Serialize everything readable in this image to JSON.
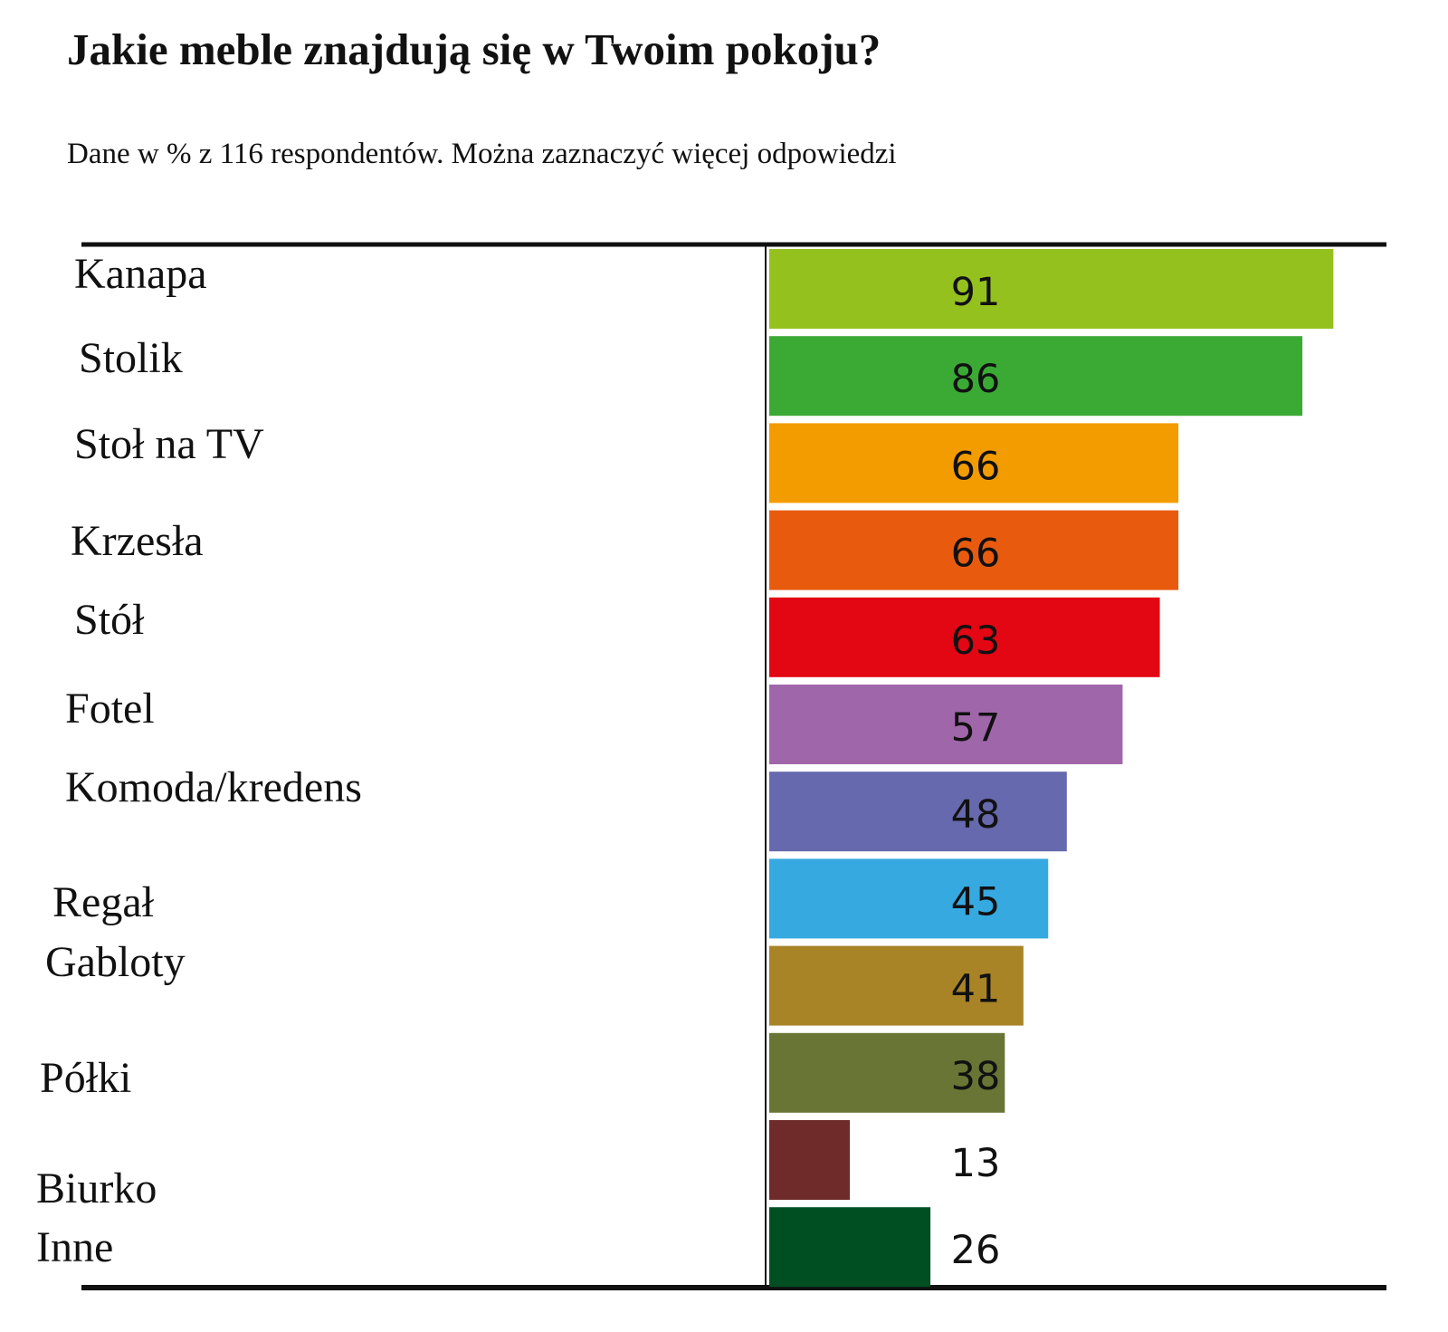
{
  "chart_data": {
    "type": "bar",
    "orientation": "horizontal",
    "title": "Jakie meble znajdują się w Twoim pokoju?",
    "subtitle": "Dane w % z 116 respondentów. Można zaznaczyć więcej odpowiedzi",
    "categories": [
      "Kanapa",
      "Stolik",
      "Stoł na TV",
      "Krzesła",
      "Stół",
      "Fotel",
      "Komoda/kredens",
      "Regał",
      "Gabloty",
      "Półki",
      "Biurko",
      "Inne"
    ],
    "values": [
      91,
      86,
      66,
      66,
      63,
      57,
      48,
      45,
      41,
      38,
      13,
      26
    ],
    "colors": [
      "#95c11f",
      "#3aaa35",
      "#f39c00",
      "#e85b0f",
      "#e30613",
      "#a066aa",
      "#6669ad",
      "#36a9e1",
      "#a88427",
      "#687535",
      "#6e2b29",
      "#004f23"
    ],
    "xlim": [
      0,
      100
    ],
    "grid": false,
    "legend": "none"
  }
}
